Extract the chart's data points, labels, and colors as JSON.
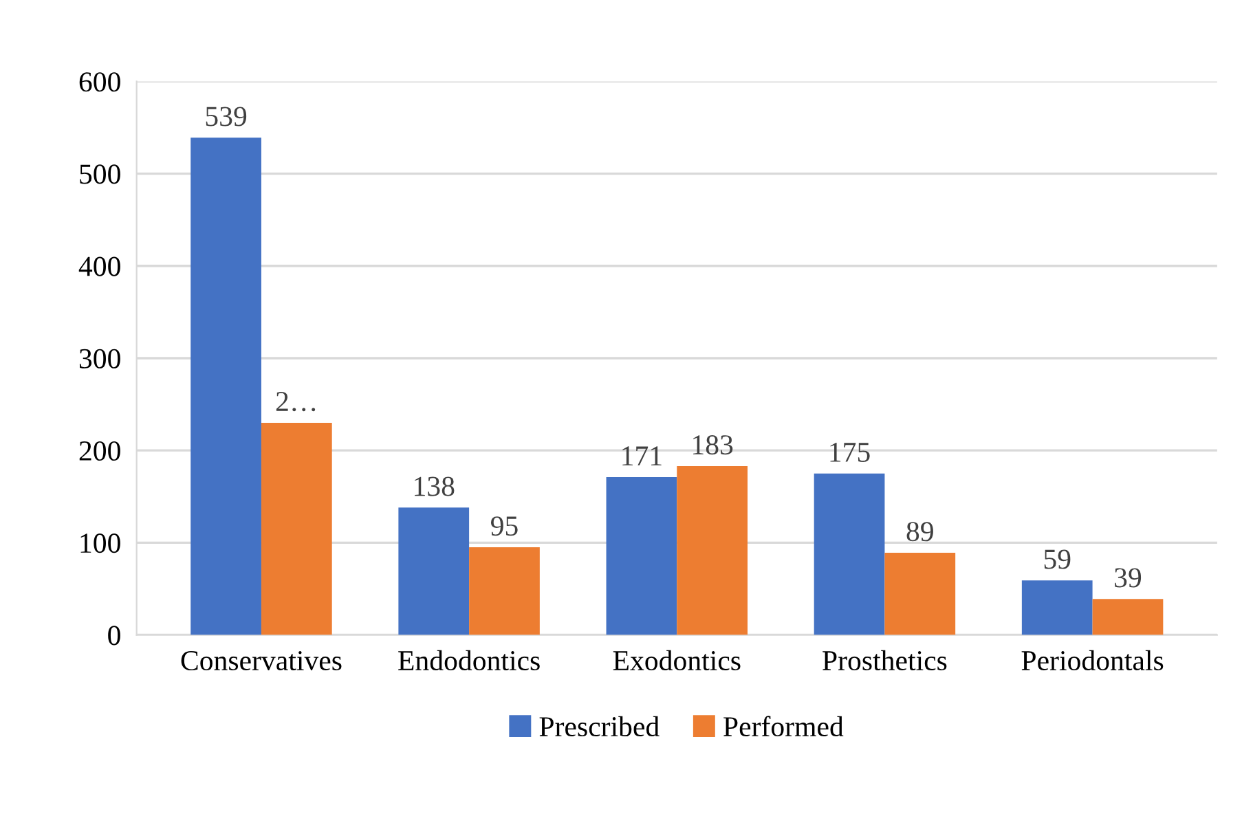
{
  "chart_data": {
    "type": "bar",
    "categories": [
      "Conservatives",
      "Endodontics",
      "Exodontics",
      "Prosthetics",
      "Periodontals"
    ],
    "series": [
      {
        "name": "Prescribed",
        "color": "#4472c4",
        "values": [
          539,
          138,
          171,
          175,
          59
        ],
        "value_labels": [
          "539",
          "138",
          "171",
          "175",
          "59"
        ]
      },
      {
        "name": "Performed",
        "color": "#ed7d31",
        "values": [
          230,
          95,
          183,
          89,
          39
        ],
        "value_labels": [
          "2…",
          "95",
          "183",
          "89",
          "39"
        ]
      }
    ],
    "ylim": [
      0,
      600
    ],
    "yticks": [
      0,
      100,
      200,
      300,
      400,
      500,
      600
    ],
    "grid": "y",
    "legend": "bottom"
  }
}
